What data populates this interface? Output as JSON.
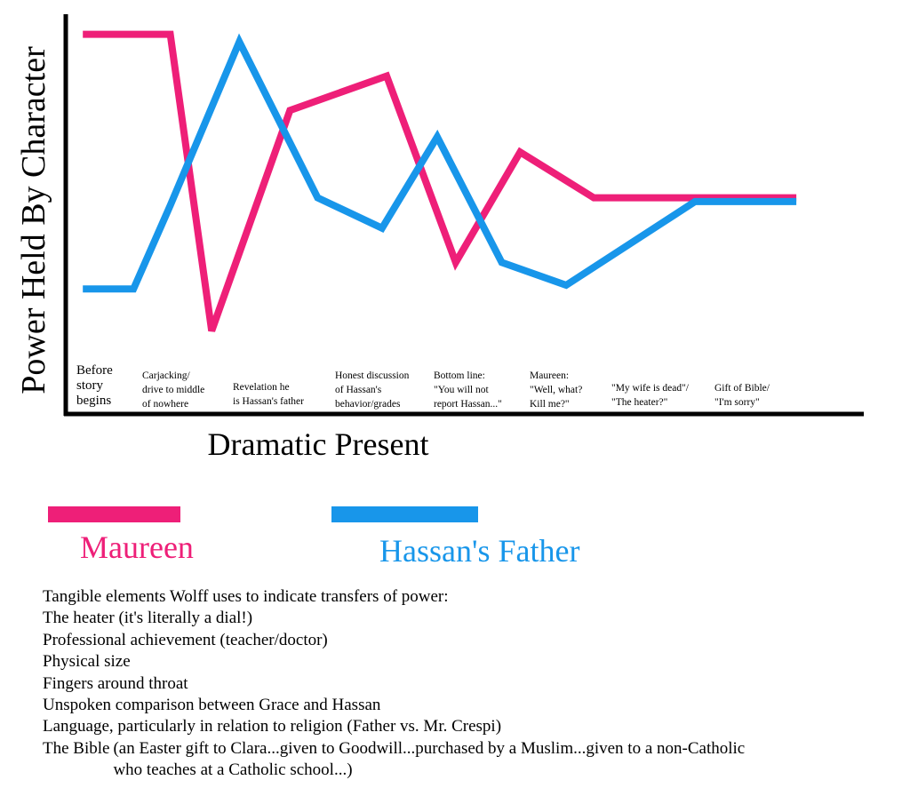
{
  "chart_data": {
    "type": "line",
    "ylabel": "Power Held By Character",
    "xlabel": "Dramatic Present",
    "categories": [
      [
        "Before",
        "story",
        "begins"
      ],
      [
        "Carjacking/",
        "drive to middle",
        "of nowhere"
      ],
      [
        "Revelation he",
        "is Hassan's father"
      ],
      [
        "Honest discussion",
        "of Hassan's",
        "behavior/grades"
      ],
      [
        "Bottom line:",
        "\"You will not",
        "report Hassan...\""
      ],
      [
        "Maureen:",
        "\"Well, what?",
        "Kill me?\""
      ],
      [
        "\"My wife is dead\"/",
        "\"The heater?\""
      ],
      [
        "Gift of Bible/",
        "\"I'm sorry\""
      ]
    ],
    "ylim": [
      0,
      100
    ],
    "grid": false,
    "series": [
      {
        "name": "Maureen",
        "color": "#ee1f78",
        "x": [
          0.05,
          1.0,
          1.45,
          2.3,
          3.35,
          4.1,
          4.8,
          5.6,
          6.1,
          6.85,
          7.2,
          7.8
        ],
        "values": [
          98,
          98,
          20,
          78,
          87,
          38,
          67,
          55,
          55,
          55,
          55,
          55
        ]
      },
      {
        "name": "Hassan's Father",
        "color": "#1896ea",
        "x": [
          0.05,
          0.6,
          1.0,
          1.75,
          2.6,
          3.3,
          3.9,
          4.6,
          5.3,
          6.7,
          7.2,
          7.8
        ],
        "values": [
          31,
          31,
          53,
          96,
          55,
          47,
          71,
          38,
          32,
          54,
          54,
          54
        ]
      }
    ]
  },
  "legend": [
    {
      "name": "Maureen",
      "color": "#ee1f78"
    },
    {
      "name": "Hassan's Father",
      "color": "#1896ea"
    }
  ],
  "notes": {
    "heading": "Tangible elements Wolff uses to indicate transfers of power:",
    "items": [
      "The heater (it's literally a dial!)",
      "Professional achievement (teacher/doctor)",
      "Physical size",
      "Fingers around throat",
      "Unspoken comparison between Grace and Hassan",
      "Language, particularly in relation to religion (Father vs. Mr. Crespi)"
    ],
    "bible_label": "The Bible",
    "bible_line1": "(an Easter gift to Clara...given to Goodwill...purchased by a Muslim...given to a non-Catholic",
    "bible_line2": "who teaches at a Catholic school...)"
  }
}
